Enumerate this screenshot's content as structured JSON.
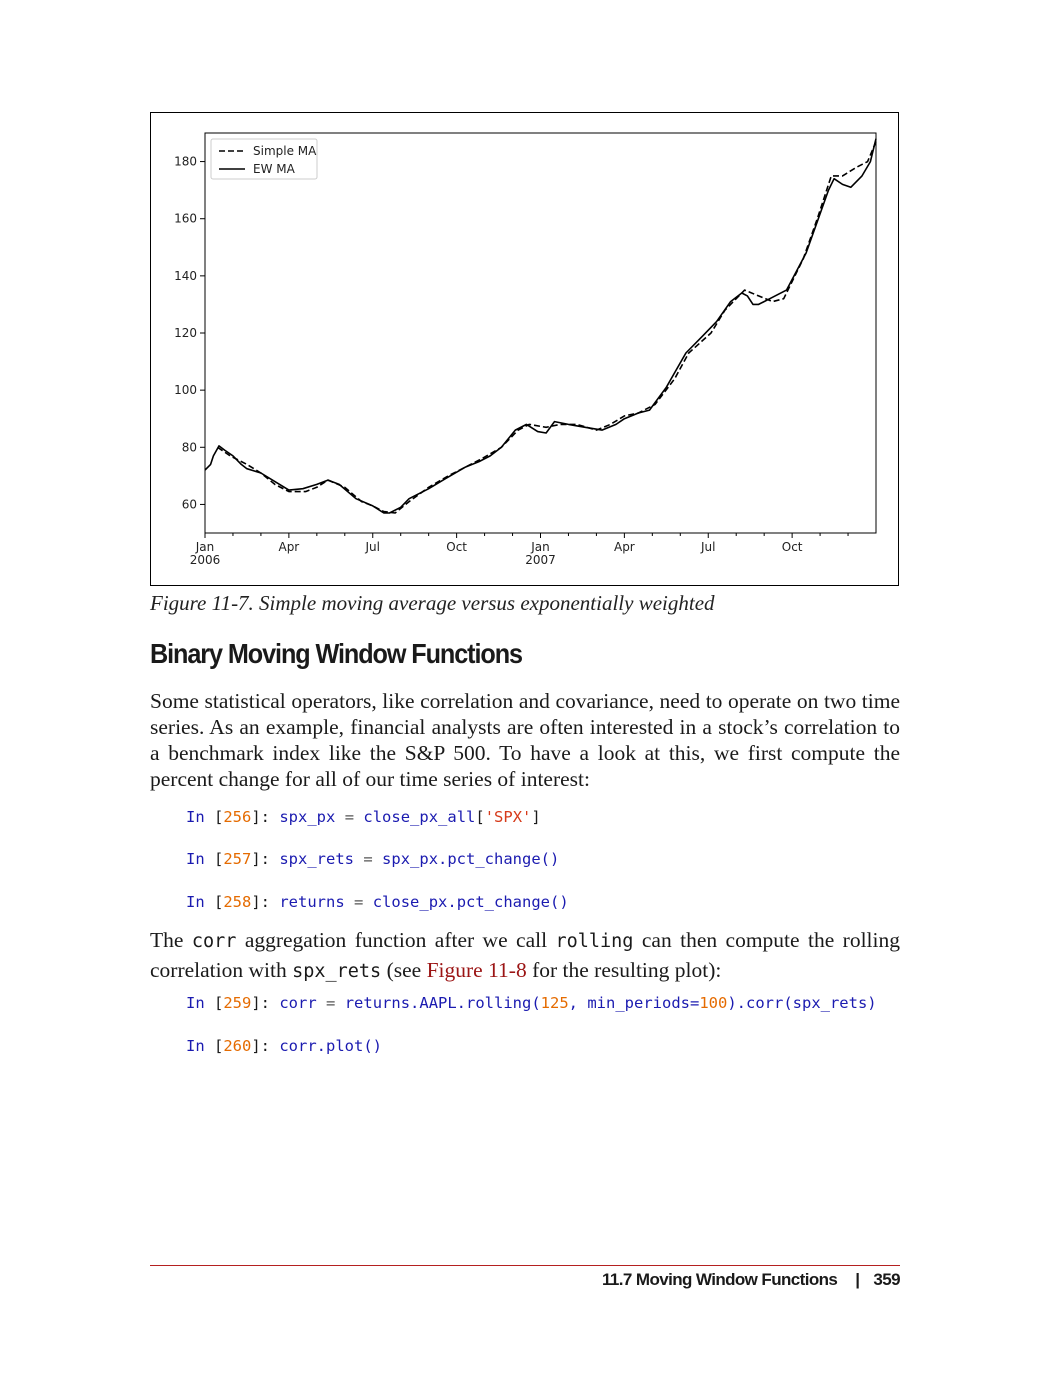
{
  "chart_data": {
    "type": "line",
    "title": "",
    "xlabel": "",
    "ylabel": "",
    "ylim": [
      50,
      190
    ],
    "yticks": [
      60,
      80,
      100,
      120,
      140,
      160,
      180
    ],
    "xticks": [
      {
        "t": 0,
        "label": "Jan",
        "sub": "2006"
      },
      {
        "t": 3,
        "label": "Apr",
        "sub": ""
      },
      {
        "t": 6,
        "label": "Jul",
        "sub": ""
      },
      {
        "t": 9,
        "label": "Oct",
        "sub": ""
      },
      {
        "t": 12,
        "label": "Jan",
        "sub": "2007"
      },
      {
        "t": 15,
        "label": "Apr",
        "sub": ""
      },
      {
        "t": 18,
        "label": "Jul",
        "sub": ""
      },
      {
        "t": 21,
        "label": "Oct",
        "sub": ""
      }
    ],
    "xlim": [
      0,
      24
    ],
    "legend": {
      "position": "top-left"
    },
    "grid": false,
    "series": [
      {
        "name": "Simple MA",
        "style": "dashed",
        "color": "#000000",
        "points": [
          [
            0.45,
            80
          ],
          [
            0.9,
            77
          ],
          [
            1.5,
            74
          ],
          [
            2,
            71
          ],
          [
            2.5,
            67
          ],
          [
            3,
            64.5
          ],
          [
            3.6,
            64.5
          ],
          [
            4,
            66
          ],
          [
            4.4,
            68.5
          ],
          [
            5,
            66
          ],
          [
            5.6,
            61
          ],
          [
            6,
            59.5
          ],
          [
            6.4,
            57.5
          ],
          [
            6.8,
            57
          ],
          [
            7.3,
            61
          ],
          [
            8,
            66
          ],
          [
            8.7,
            70
          ],
          [
            9.3,
            73
          ],
          [
            9.9,
            76
          ],
          [
            10.6,
            80
          ],
          [
            11.2,
            86
          ],
          [
            11.6,
            88
          ],
          [
            12.2,
            87
          ],
          [
            12.7,
            88
          ],
          [
            13.3,
            88
          ],
          [
            14,
            86
          ],
          [
            14.5,
            88
          ],
          [
            15,
            91
          ],
          [
            15.5,
            92
          ],
          [
            16.1,
            95
          ],
          [
            16.8,
            104
          ],
          [
            17.3,
            113
          ],
          [
            18.1,
            120
          ],
          [
            18.6,
            128
          ],
          [
            19.3,
            135
          ],
          [
            19.8,
            133
          ],
          [
            20.3,
            131
          ],
          [
            20.7,
            132
          ],
          [
            21.4,
            146
          ],
          [
            21.9,
            160
          ],
          [
            22.4,
            175
          ],
          [
            22.8,
            175
          ],
          [
            23.3,
            178
          ],
          [
            23.7,
            180
          ],
          [
            24,
            187
          ]
        ]
      },
      {
        "name": "EW MA",
        "style": "solid",
        "color": "#000000",
        "points": [
          [
            0,
            72
          ],
          [
            0.2,
            74
          ],
          [
            0.3,
            77
          ],
          [
            0.5,
            80.5
          ],
          [
            0.7,
            79
          ],
          [
            1,
            77
          ],
          [
            1.3,
            74
          ],
          [
            1.5,
            72.5
          ],
          [
            2,
            71
          ],
          [
            2.5,
            68
          ],
          [
            3,
            65
          ],
          [
            3.5,
            65.5
          ],
          [
            4,
            67
          ],
          [
            4.4,
            68.5
          ],
          [
            4.8,
            67
          ],
          [
            5.4,
            62
          ],
          [
            6,
            59.5
          ],
          [
            6.4,
            57
          ],
          [
            6.6,
            57
          ],
          [
            7,
            59
          ],
          [
            7.3,
            62
          ],
          [
            8,
            65.5
          ],
          [
            8.6,
            69
          ],
          [
            9.3,
            73
          ],
          [
            9.8,
            75
          ],
          [
            10.2,
            77
          ],
          [
            10.6,
            80
          ],
          [
            11.1,
            86
          ],
          [
            11.5,
            88
          ],
          [
            11.9,
            85.5
          ],
          [
            12.2,
            85
          ],
          [
            12.5,
            89
          ],
          [
            13,
            88
          ],
          [
            13.6,
            87
          ],
          [
            14.2,
            86
          ],
          [
            14.7,
            88
          ],
          [
            15,
            90
          ],
          [
            15.5,
            92
          ],
          [
            15.9,
            93
          ],
          [
            16.5,
            101
          ],
          [
            17.2,
            113
          ],
          [
            17.8,
            119
          ],
          [
            18.3,
            124
          ],
          [
            18.8,
            131
          ],
          [
            19.2,
            134
          ],
          [
            19.4,
            133
          ],
          [
            19.6,
            130
          ],
          [
            19.8,
            130
          ],
          [
            20.2,
            132
          ],
          [
            20.8,
            135
          ],
          [
            21.5,
            148
          ],
          [
            21.9,
            159
          ],
          [
            22.3,
            170
          ],
          [
            22.5,
            174
          ],
          [
            22.8,
            172
          ],
          [
            23.1,
            171
          ],
          [
            23.5,
            175
          ],
          [
            23.8,
            180
          ],
          [
            24,
            188
          ]
        ]
      }
    ]
  },
  "caption": "Figure 11-7. Simple moving average versus exponentially weighted",
  "section_heading": "Binary Moving Window Functions",
  "paragraph1": "Some statistical operators, like correlation and covariance, need to operate on two time series. As an example, financial analysts are often interested in a stock’s correlation to a benchmark index like the S&P 500. To have a look at this, we first compute the percent change for all of our time series of interest:",
  "code": {
    "in_prefix": "In",
    "cells": [
      {
        "num": "256",
        "lhs": "spx_px",
        "rhs": "close_px_all",
        "rhs_tail_open": "[",
        "str": "'SPX'",
        "rhs_tail_close": "]"
      },
      {
        "num": "257",
        "lhs": "spx_rets",
        "rhs": "spx_px.pct_change()"
      },
      {
        "num": "258",
        "lhs": "returns",
        "rhs": "close_px.pct_change()"
      },
      {
        "num": "259",
        "lhs": "corr",
        "rhs_a": "returns.AAPL.rolling(",
        "n125": "125",
        "mid": ", min_periods=",
        "n100": "100",
        "rhs_b": ").corr(spx_rets)"
      },
      {
        "num": "260",
        "text": "corr.plot()"
      }
    ]
  },
  "paragraph2": {
    "p1": "The ",
    "c1": "corr",
    "p2": " aggregation function after we call ",
    "c2": "rolling",
    "p3": " can then compute the rolling correlation with ",
    "c3": "spx_rets",
    "p4": " (see ",
    "link": "Figure 11-8",
    "p5": " for the resulting plot):"
  },
  "footer": {
    "section": "11.7 Moving Window Functions",
    "separator": "|",
    "page": "359"
  }
}
